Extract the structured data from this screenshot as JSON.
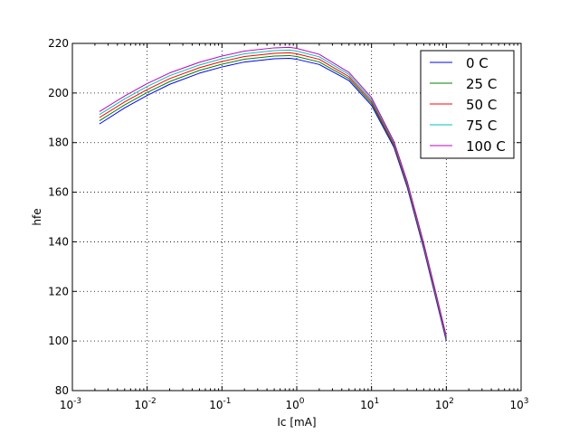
{
  "chart_data": {
    "type": "line",
    "title": "",
    "xlabel": "Ic [mA]",
    "ylabel": "hfe",
    "xscale": "log",
    "xlim": [
      0.001,
      1000
    ],
    "ylim": [
      80,
      220
    ],
    "grid": true,
    "legend_position": "top-right",
    "x_ticks": [
      {
        "base": "10",
        "exp": "-3",
        "value": 0.001
      },
      {
        "base": "10",
        "exp": "-2",
        "value": 0.01
      },
      {
        "base": "10",
        "exp": "-1",
        "value": 0.1
      },
      {
        "base": "10",
        "exp": "0",
        "value": 1
      },
      {
        "base": "10",
        "exp": "1",
        "value": 10
      },
      {
        "base": "10",
        "exp": "2",
        "value": 100
      },
      {
        "base": "10",
        "exp": "3",
        "value": 1000
      }
    ],
    "y_ticks": [
      "80",
      "100",
      "120",
      "140",
      "160",
      "180",
      "200",
      "220"
    ],
    "x": [
      0.0023,
      0.005,
      0.01,
      0.02,
      0.05,
      0.1,
      0.2,
      0.5,
      0.8,
      1,
      2,
      5,
      10,
      20,
      30,
      50,
      70,
      100
    ],
    "series": [
      {
        "name": "0 C",
        "color": "#0000ff",
        "values": [
          187.5,
          194,
          199,
          203.5,
          208,
          210.5,
          212.5,
          213.8,
          214,
          213.6,
          211.5,
          205,
          195,
          178,
          162,
          137,
          119,
          100
        ]
      },
      {
        "name": "25 C",
        "color": "#008000",
        "values": [
          188.8,
          195.2,
          200.2,
          204.6,
          209.1,
          211.6,
          213.6,
          214.9,
          215.1,
          214.7,
          212.5,
          205.8,
          195.8,
          178.6,
          162.6,
          137.6,
          119.6,
          100.5
        ]
      },
      {
        "name": "50 C",
        "color": "#ff0000",
        "values": [
          190.1,
          196.4,
          201.4,
          205.8,
          210.2,
          212.7,
          214.7,
          216,
          216.2,
          215.8,
          213.6,
          206.6,
          196.6,
          179.2,
          163.2,
          138.2,
          120.2,
          101
        ]
      },
      {
        "name": "75 C",
        "color": "#00bfbf",
        "values": [
          191.3,
          197.6,
          202.6,
          207,
          211.3,
          213.8,
          215.8,
          217.1,
          217.3,
          216.9,
          214.6,
          207.5,
          197.4,
          179.8,
          163.8,
          138.8,
          120.8,
          101.5
        ]
      },
      {
        "name": "100 C",
        "color": "#bf00bf",
        "values": [
          192.5,
          198.8,
          203.8,
          208.1,
          212.4,
          214.9,
          216.9,
          218.2,
          218.4,
          218,
          215.6,
          208.3,
          198.2,
          180.4,
          164.4,
          139.4,
          121.4,
          102
        ]
      }
    ]
  }
}
